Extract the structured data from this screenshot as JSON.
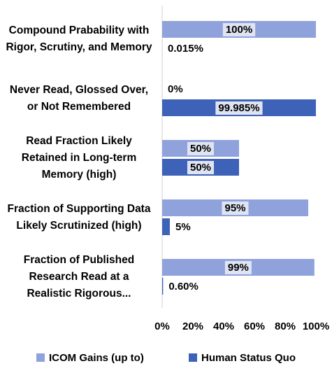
{
  "chart_data": {
    "type": "hbar",
    "categories": [
      "Compound Prabability with Rigor, Scrutiny, and Memory",
      "Never Read, Glossed Over, or Not Remembered",
      "Read Fraction Likely Retained in Long-term Memory (high)",
      "Fraction of Supporting Data Likely Scrutinized (high)",
      "Fraction of Published Research Read at a Realistic Rigorous..."
    ],
    "series": [
      {
        "name": "ICOM Gains (up to)",
        "color": "#8fa2dc",
        "values": [
          100,
          0,
          50,
          95,
          99
        ],
        "value_labels": [
          "100%",
          "0%",
          "50%",
          "95%",
          "99%"
        ]
      },
      {
        "name": "Human Status Quo",
        "color": "#3d62b8",
        "values": [
          0.015,
          99.985,
          50,
          5,
          0.6
        ],
        "value_labels": [
          "0.015%",
          "99.985%",
          "50%",
          "5%",
          "0.60%"
        ]
      }
    ],
    "xlim": [
      0,
      100
    ],
    "xticks": [
      {
        "value": 0,
        "label": "0%"
      },
      {
        "value": 20,
        "label": "20%"
      },
      {
        "value": 40,
        "label": "40%"
      },
      {
        "value": 60,
        "label": "60%"
      },
      {
        "value": 80,
        "label": "80%"
      },
      {
        "value": 100,
        "label": "100%"
      }
    ],
    "legend": "bottom",
    "grid": false
  }
}
